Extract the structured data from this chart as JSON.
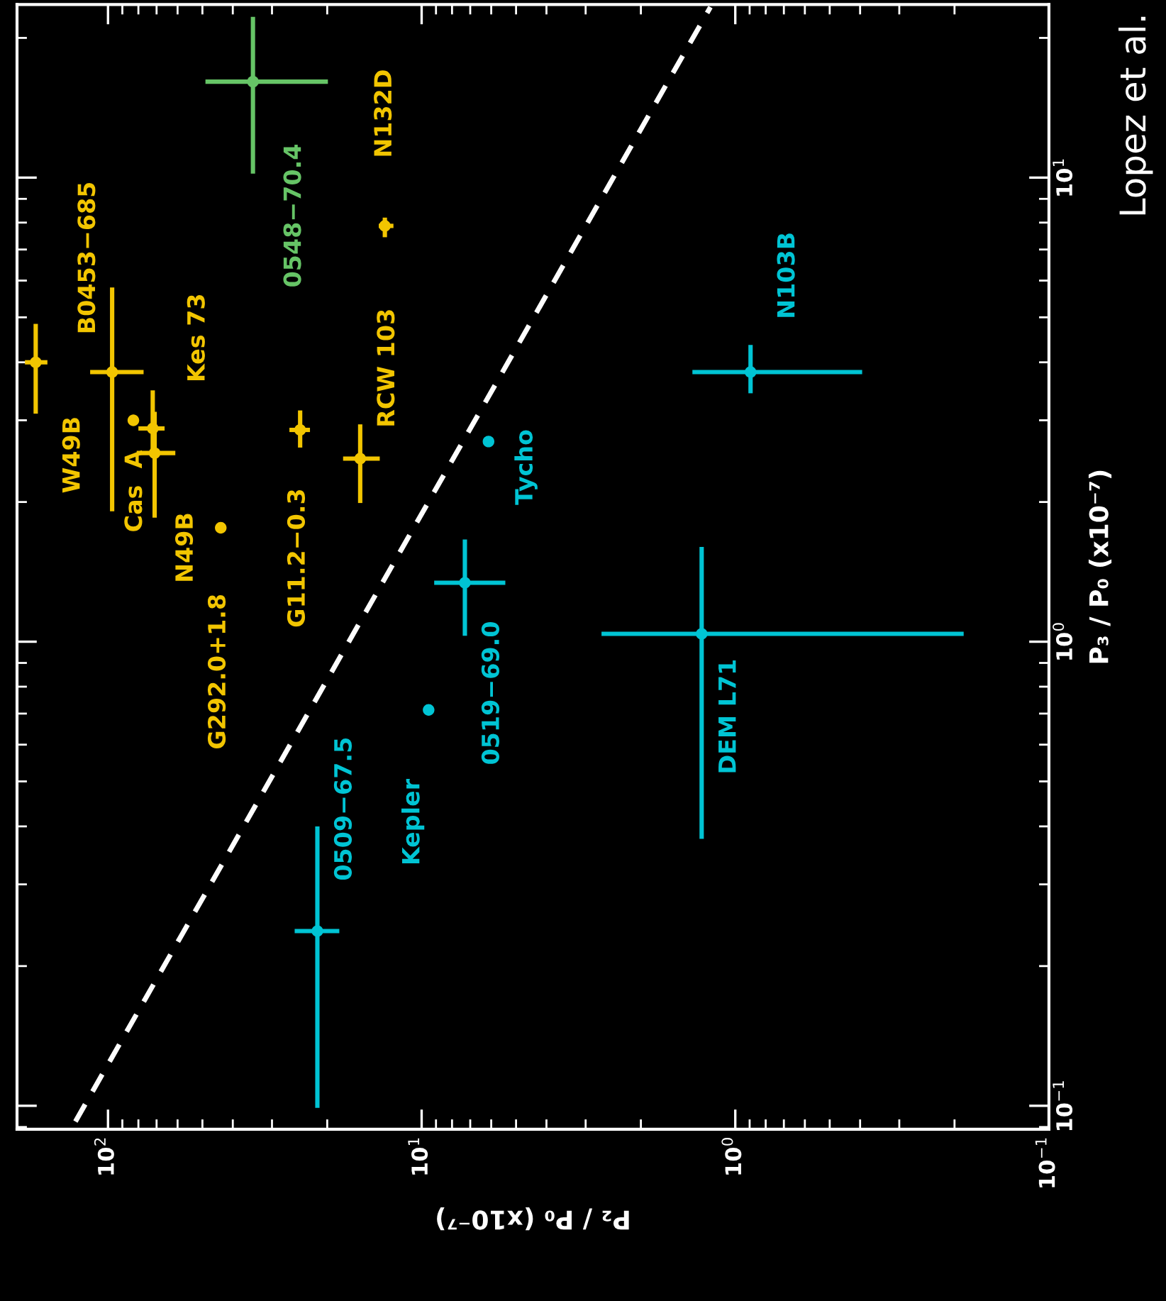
{
  "chart_data": {
    "type": "scatter",
    "xlabel": "P₂ / P₀ (x10⁻⁷)",
    "ylabel": "P₃ / P₀ (x10⁻⁷)",
    "log": "xy",
    "grid": false,
    "marker": "circle",
    "xlim": [
      195,
      0.1
    ],
    "ylim": [
      0.089,
      23.6
    ],
    "xticks": [
      {
        "value": 100,
        "label": "10$^{2}$"
      },
      {
        "value": 10,
        "label": "10$^{1}$"
      },
      {
        "value": 1,
        "label": "10$^{0}$"
      },
      {
        "value": 0.1,
        "label": "10$^{−1}$"
      }
    ],
    "yticks": [
      {
        "value": 0.1,
        "label": "10$^{−1}$"
      },
      {
        "value": 1,
        "label": "10$^{0}$"
      },
      {
        "value": 10,
        "label": "10$^{1}$"
      }
    ],
    "series": [
      {
        "color": "#f2c500",
        "x": [
          170,
          97,
          83,
          72,
          71,
          43.7,
          24.4,
          15.7,
          13.1
        ],
        "values": [
          4.0,
          3.81,
          3.0,
          2.88,
          2.55,
          1.76,
          2.86,
          2.48,
          7.87
        ],
        "errors": [
          [
            3.1,
            4.84
          ],
          [
            1.91,
            5.8
          ],
          null,
          [
            2.53,
            3.48
          ],
          [
            1.85,
            3.13
          ],
          null,
          [
            2.62,
            3.15
          ],
          [
            1.99,
            2.94
          ],
          [
            7.44,
            8.2
          ]
        ],
        "xerrors": [
          [
            156,
            184
          ],
          [
            77,
            114
          ],
          null,
          [
            66,
            80
          ],
          [
            61,
            81
          ],
          null,
          [
            22.7,
            26.4
          ],
          [
            13.6,
            17.8
          ],
          [
            12.3,
            13.7
          ]
        ]
      },
      {
        "color": "#66c466",
        "x": [
          34.5
        ],
        "values": [
          16.1
        ],
        "errors": [
          [
            10.2,
            22.2
          ]
        ],
        "xerrors": [
          [
            19.9,
            48.9
          ]
        ]
      },
      {
        "color": "#00c4d4",
        "x": [
          6.12,
          7.28,
          9.5,
          21.5,
          1.28,
          0.894
        ],
        "values": [
          2.7,
          1.34,
          0.713,
          0.238,
          1.04,
          3.81
        ],
        "errors": [
          null,
          [
            1.03,
            1.66
          ],
          null,
          [
            0.099,
            0.4
          ],
          [
            0.376,
            1.6
          ],
          [
            3.43,
            4.36
          ]
        ],
        "xerrors": [
          null,
          [
            5.41,
            9.12
          ],
          null,
          [
            18.3,
            25.4
          ],
          [
            0.187,
            2.67
          ],
          [
            0.394,
            1.37
          ]
        ]
      },
      {
        "type": "line",
        "color": "#ffffff",
        "line_style": "dashed",
        "marker": "none",
        "x": [
          127,
          1.2
        ],
        "values": [
          0.0925,
          23.3
        ]
      }
    ],
    "annotations": [
      {
        "text": "W49B",
        "x": 170,
        "y": 4.0
      },
      {
        "text": "B0453−685",
        "x": 97,
        "y": 3.81
      },
      {
        "text": "Cas  A",
        "x": 83,
        "y": 3.0
      },
      {
        "text": "Kes 73",
        "x": 72,
        "y": 2.88
      },
      {
        "text": "N49B",
        "x": 71,
        "y": 2.55
      },
      {
        "text": "G292.0+1.8",
        "x": 43.7,
        "y": 1.76
      },
      {
        "text": "G11.2−0.3",
        "x": 24.4,
        "y": 2.86
      },
      {
        "text": "RCW 103",
        "x": 15.7,
        "y": 2.48
      },
      {
        "text": "N132D",
        "x": 13.1,
        "y": 7.87
      },
      {
        "text": "0548−70.4",
        "x": 34.5,
        "y": 16.1
      },
      {
        "text": "Tycho",
        "x": 6.12,
        "y": 2.7
      },
      {
        "text": "0519−69.0",
        "x": 7.28,
        "y": 1.34
      },
      {
        "text": "Kepler",
        "x": 9.5,
        "y": 0.713
      },
      {
        "text": "0509−67.5",
        "x": 21.5,
        "y": 0.238
      },
      {
        "text": "DEM L71",
        "x": 1.28,
        "y": 1.04
      },
      {
        "text": "N103B",
        "x": 0.894,
        "y": 3.81
      },
      "Lopez et al."
    ]
  }
}
